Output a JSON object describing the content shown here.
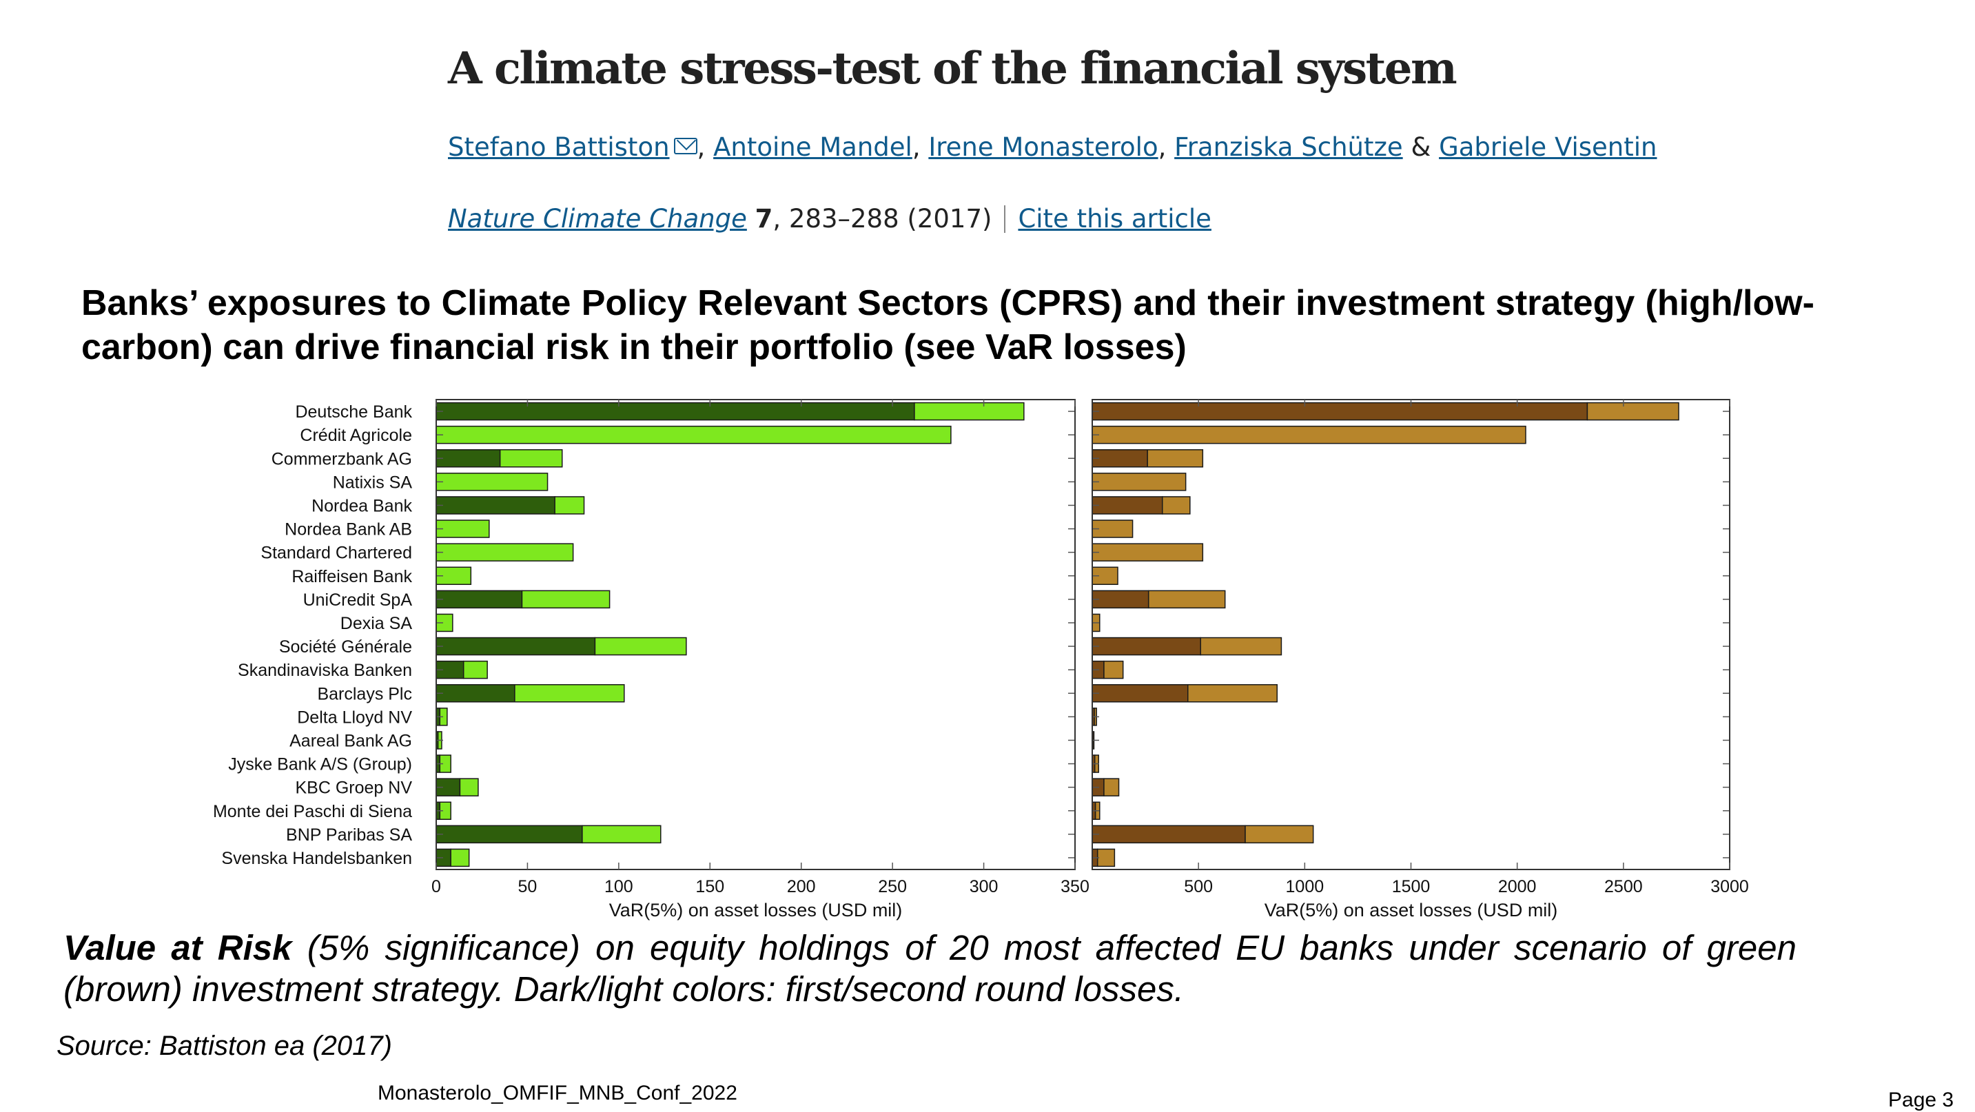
{
  "paper": {
    "title": "A climate stress-test of the financial system",
    "authors": [
      "Stefano Battiston",
      "Antoine Mandel",
      "Irene Monasterolo",
      "Franziska Schütze",
      "Gabriele Visentin"
    ],
    "author_separators": [
      ",",
      ",",
      ",",
      "&"
    ],
    "journal": "Nature Climate Change",
    "volume": "7",
    "pages_year": ", 283–288 (2017)",
    "cite_link": "Cite this article"
  },
  "headline": "Banks’ exposures to Climate Policy Relevant Sectors (CPRS) and their investment strategy (high/low-carbon) can drive financial risk in their portfolio (see VaR losses)",
  "caption": {
    "bold": "Value at Risk",
    "text": " (5% significance) on equity holdings of 20 most affected EU banks under scenario of green (brown) investment strategy. Dark/light colors: first/second round losses."
  },
  "source": "Source: Battiston ea (2017)",
  "footer": "Monasterolo_OMFIF_MNB_Conf_2022",
  "page_number": "Page 3",
  "chart_data": [
    {
      "type": "bar",
      "orientation": "horizontal",
      "stacked": true,
      "categories": [
        "Deutsche Bank",
        "Crédit Agricole",
        "Commerzbank AG",
        "Natixis SA",
        "Nordea Bank",
        "Nordea Bank AB",
        "Standard Chartered",
        "Raiffeisen Bank",
        "UniCredit SpA",
        "Dexia SA",
        "Société Générale",
        "Skandinaviska Banken",
        "Barclays Plc",
        "Delta Lloyd NV",
        "Aareal Bank AG",
        "Jyske Bank A/S (Group)",
        "KBC Groep NV",
        "Monte dei Paschi di Siena",
        "BNP Paribas SA",
        "Svenska Handelsbanken"
      ],
      "series": [
        {
          "color": "#2e5e0c",
          "values": [
            262,
            0,
            35,
            0,
            65,
            0,
            0,
            0,
            47,
            0,
            87,
            15,
            43,
            2,
            1,
            2,
            13,
            2,
            80,
            8
          ]
        },
        {
          "color": "#7ee81f",
          "values": [
            60,
            282,
            34,
            61,
            16,
            29,
            75,
            19,
            48,
            9,
            50,
            13,
            60,
            4,
            2,
            6,
            10,
            6,
            43,
            10
          ]
        }
      ],
      "xlabel": "VaR(5%) on asset losses (USD mil)",
      "xticks": [
        0,
        50,
        100,
        150,
        200,
        250,
        300,
        350
      ],
      "xlim": [
        0,
        350
      ]
    },
    {
      "type": "bar",
      "orientation": "horizontal",
      "stacked": true,
      "categories": [
        "Deutsche Bank",
        "Crédit Agricole",
        "Commerzbank AG",
        "Natixis SA",
        "Nordea Bank",
        "Nordea Bank AB",
        "Standard Chartered",
        "Raiffeisen Bank",
        "UniCredit SpA",
        "Dexia SA",
        "Société Générale",
        "Skandinaviska Banken",
        "Barclays Plc",
        "Delta Lloyd NV",
        "Aareal Bank AG",
        "Jyske Bank A/S (Group)",
        "KBC Groep NV",
        "Monte dei Paschi di Siena",
        "BNP Paribas SA",
        "Svenska Handelsbanken"
      ],
      "series": [
        {
          "color": "#7a4a16",
          "values": [
            2330,
            0,
            260,
            0,
            330,
            0,
            0,
            0,
            265,
            0,
            510,
            55,
            450,
            10,
            3,
            12,
            55,
            15,
            720,
            25
          ]
        },
        {
          "color": "#b7852b",
          "values": [
            430,
            2040,
            260,
            440,
            130,
            190,
            520,
            120,
            360,
            35,
            380,
            90,
            420,
            10,
            5,
            18,
            70,
            20,
            320,
            80
          ]
        }
      ],
      "xlabel": "VaR(5%) on asset losses (USD mil)",
      "xticks": [
        500,
        1000,
        1500,
        2000,
        2500,
        3000
      ],
      "xlim": [
        0,
        3000
      ]
    }
  ]
}
